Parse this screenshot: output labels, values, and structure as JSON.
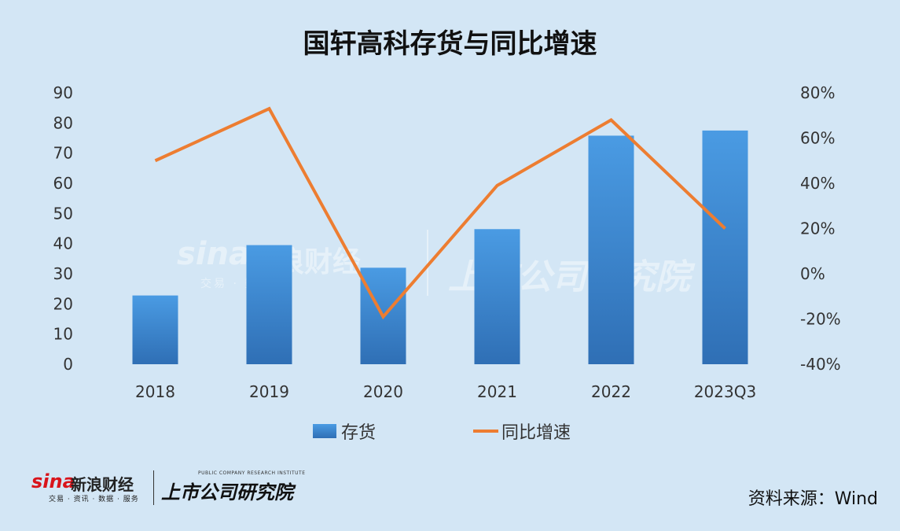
{
  "title": "国轩高科存货与同比增速",
  "source": "资料来源：Wind",
  "logo": {
    "sina": "sina",
    "sina_cn": "新浪财经",
    "sina_sub": "交易 · 资讯 · 数据 · 服务",
    "institute_cn": "上市公司研究院",
    "institute_en": "PUBLIC COMPANY RESEARCH INSTITUTE"
  },
  "watermark": {
    "sina": "sina",
    "sina_cn": "新浪财经",
    "sina_sub": "交易 · 数据",
    "institute_cn": "上市公司研究院"
  },
  "colors": {
    "background": "#d3e6f5",
    "bar_top": "#4a9be3",
    "bar_bottom": "#2f6fb5",
    "line": "#ed7d31",
    "axis_text": "#333333"
  },
  "chart_data": {
    "type": "bar+line",
    "categories": [
      "2018",
      "2019",
      "2020",
      "2021",
      "2022",
      "2023Q3"
    ],
    "series": [
      {
        "name": "存货",
        "type": "bar",
        "axis": "left",
        "values": [
          22.8,
          39.5,
          32.0,
          44.8,
          75.8,
          77.5
        ]
      },
      {
        "name": "同比增速",
        "type": "line",
        "axis": "right",
        "values": [
          0.5,
          0.73,
          -0.19,
          0.39,
          0.68,
          0.2
        ]
      }
    ],
    "left_axis": {
      "ylim": [
        0,
        90
      ],
      "ticks": [
        "0",
        "10",
        "20",
        "30",
        "40",
        "50",
        "60",
        "70",
        "80",
        "90"
      ]
    },
    "right_axis": {
      "ylim": [
        -0.4,
        0.8
      ],
      "ticks": [
        "-40%",
        "-20%",
        "0%",
        "20%",
        "40%",
        "60%",
        "80%"
      ]
    },
    "grid": false,
    "legend": "bottom-center"
  }
}
